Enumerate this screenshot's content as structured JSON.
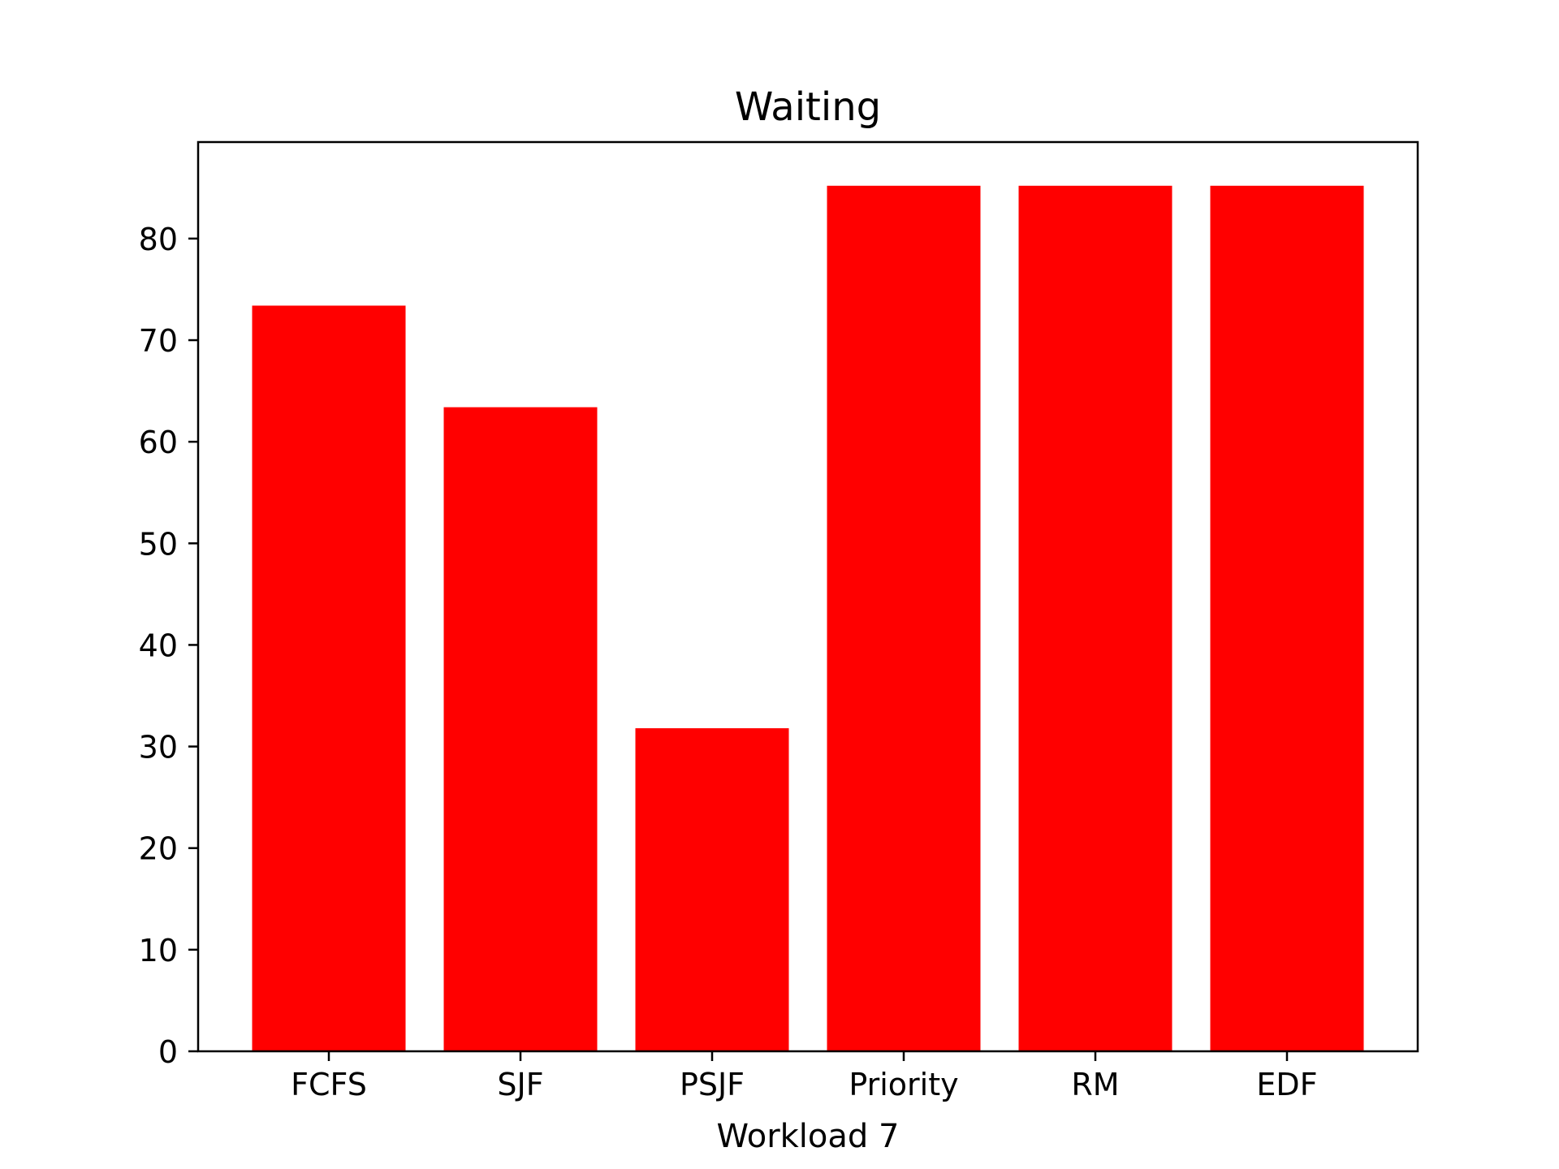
{
  "chart_data": {
    "type": "bar",
    "title": "Waiting",
    "xlabel": "Workload 7",
    "ylabel": "",
    "categories": [
      "FCFS",
      "SJF",
      "PSJF",
      "Priority",
      "RM",
      "EDF"
    ],
    "values": [
      73.4,
      63.4,
      31.8,
      85.2,
      85.2,
      85.2
    ],
    "ylim": [
      0,
      89.5
    ],
    "yticks": [
      0,
      10,
      20,
      30,
      40,
      50,
      60,
      70,
      80
    ],
    "grid": false,
    "bar_color": "#ff0000",
    "axes_color": "#000000"
  }
}
